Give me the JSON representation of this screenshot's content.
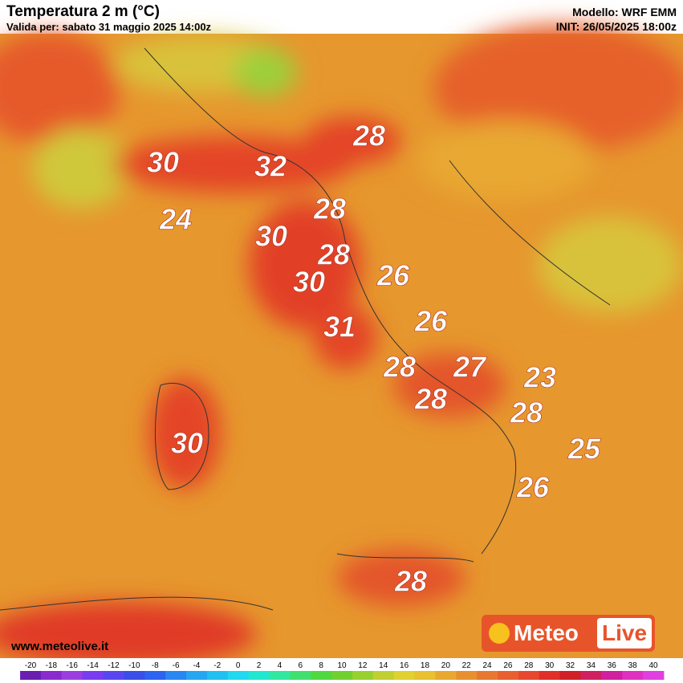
{
  "header": {
    "title": "Temperatura 2 m (°C)",
    "subtitle": "Valida per: sabato 31 maggio 2025 14:00z",
    "model": "Modello: WRF EMM",
    "init": "INIT: 26/05/2025 18:00z"
  },
  "map_labels": [
    "28",
    "30",
    "32",
    "28",
    "24",
    "30",
    "28",
    "26",
    "30",
    "31",
    "26",
    "28",
    "27",
    "23",
    "28",
    "28",
    "30",
    "25",
    "26",
    "28"
  ],
  "website": "www.meteolive.it",
  "logo": {
    "part1": "Meteo",
    "part2": "Live"
  },
  "colorbar": {
    "ticks": [
      -20,
      -18,
      -16,
      -14,
      -12,
      -10,
      -8,
      -6,
      -4,
      -2,
      0,
      2,
      4,
      6,
      8,
      10,
      12,
      14,
      16,
      18,
      20,
      22,
      24,
      26,
      28,
      30,
      32,
      34,
      36,
      38,
      40
    ],
    "colors": [
      "#6a1fb0",
      "#8a2bd0",
      "#9b3ee0",
      "#7a3cf0",
      "#5a46f0",
      "#3a4ee8",
      "#2c63f0",
      "#2a86f0",
      "#24a6f0",
      "#20c0f0",
      "#20d8f0",
      "#20e8d0",
      "#30e8a0",
      "#40e070",
      "#50d840",
      "#70d030",
      "#98d030",
      "#c0d030",
      "#e0d030",
      "#e8c030",
      "#e8a830",
      "#e89030",
      "#e87830",
      "#e86030",
      "#e84830",
      "#e03028",
      "#d02028",
      "#d02060",
      "#d020a0",
      "#e030c0",
      "#e040e0"
    ]
  }
}
